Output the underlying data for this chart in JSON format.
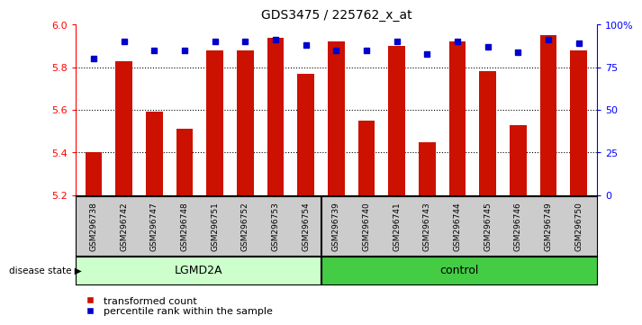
{
  "title": "GDS3475 / 225762_x_at",
  "samples": [
    "GSM296738",
    "GSM296742",
    "GSM296747",
    "GSM296748",
    "GSM296751",
    "GSM296752",
    "GSM296753",
    "GSM296754",
    "GSM296739",
    "GSM296740",
    "GSM296741",
    "GSM296743",
    "GSM296744",
    "GSM296745",
    "GSM296746",
    "GSM296749",
    "GSM296750"
  ],
  "bar_values": [
    5.4,
    5.83,
    5.59,
    5.51,
    5.88,
    5.88,
    5.94,
    5.77,
    5.92,
    5.55,
    5.9,
    5.45,
    5.92,
    5.78,
    5.53,
    5.95,
    5.88
  ],
  "percentile_values": [
    80,
    90,
    85,
    85,
    90,
    90,
    91,
    88,
    85,
    85,
    90,
    83,
    90,
    87,
    84,
    91,
    89
  ],
  "groups": [
    "LGMD2A",
    "LGMD2A",
    "LGMD2A",
    "LGMD2A",
    "LGMD2A",
    "LGMD2A",
    "LGMD2A",
    "LGMD2A",
    "control",
    "control",
    "control",
    "control",
    "control",
    "control",
    "control",
    "control",
    "control"
  ],
  "lgmd2a_color": "#ccffcc",
  "control_color": "#44cc44",
  "bar_color": "#cc1100",
  "dot_color": "#0000cc",
  "ylim_left": [
    5.2,
    6.0
  ],
  "ylim_right": [
    0,
    100
  ],
  "yticks_left": [
    5.2,
    5.4,
    5.6,
    5.8,
    6.0
  ],
  "yticks_right": [
    0,
    25,
    50,
    75,
    100
  ],
  "background_color": "#ffffff",
  "plot_bg": "#ffffff",
  "label_bg": "#cccccc"
}
